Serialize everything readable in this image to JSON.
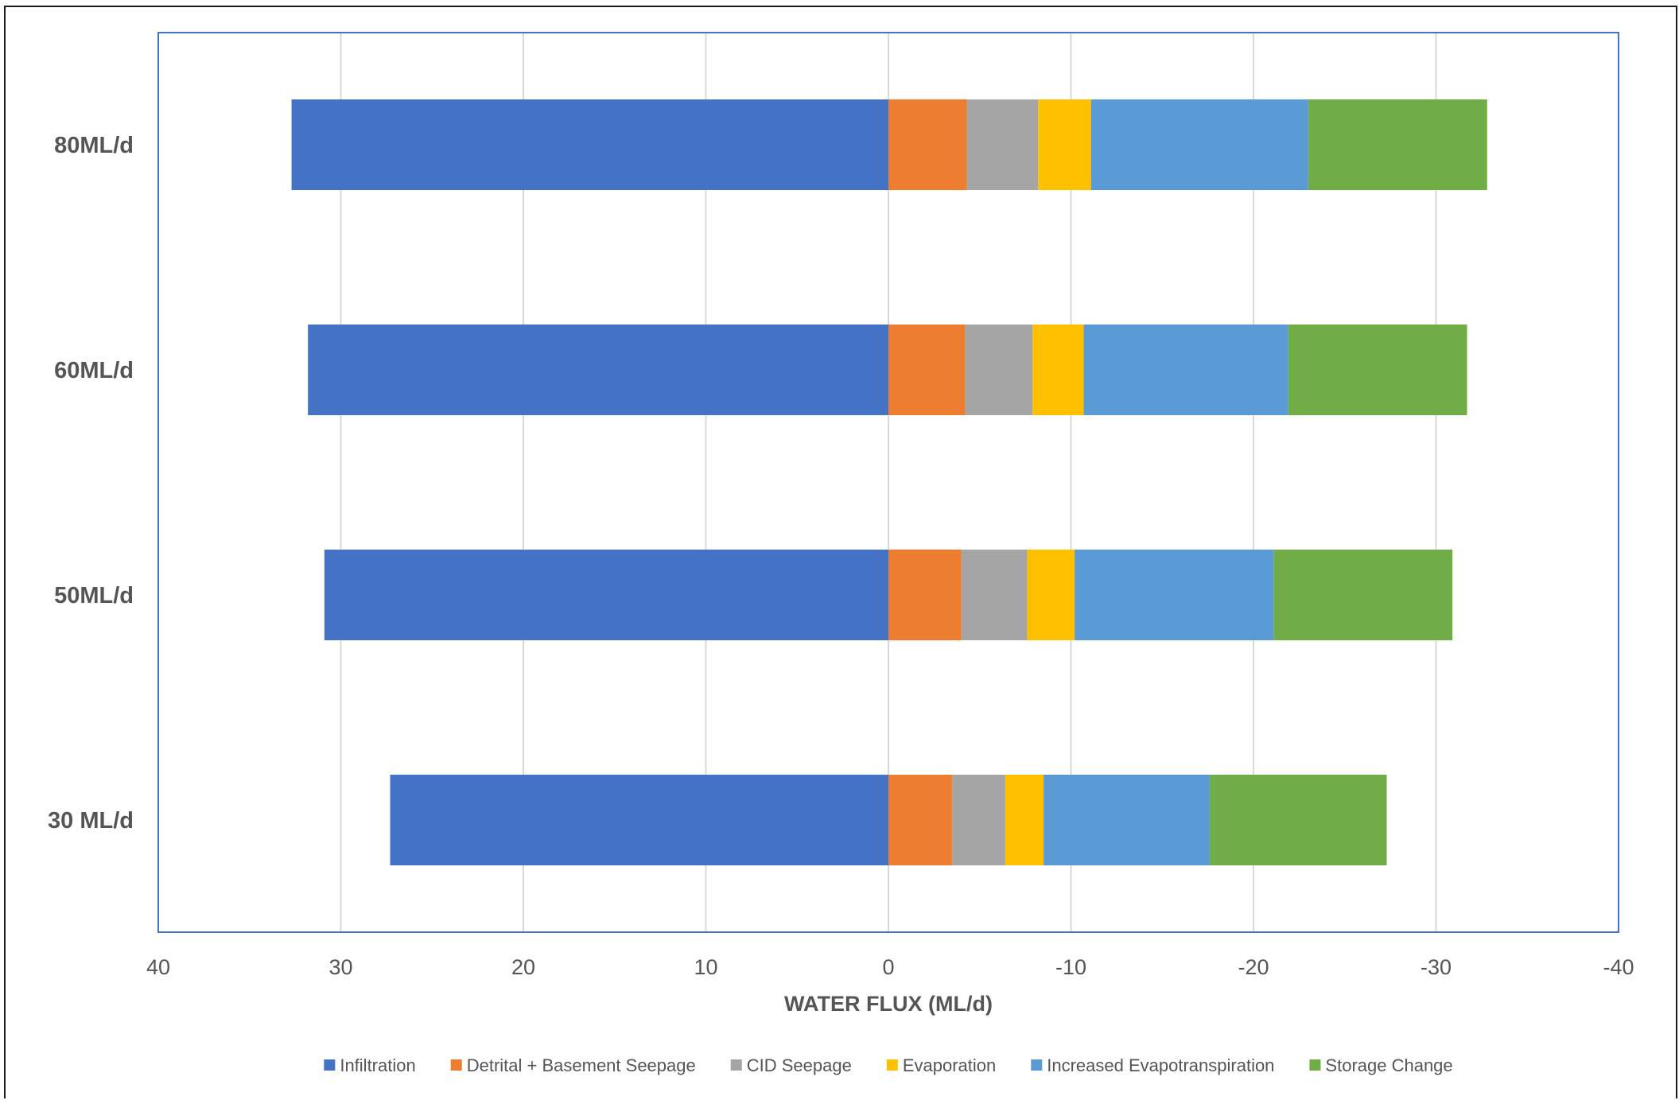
{
  "chart_data": {
    "type": "bar",
    "orientation": "horizontal",
    "stacked": true,
    "x_reversed": true,
    "categories": [
      "80ML/d",
      "60ML/d",
      "50ML/d",
      "30 ML/d"
    ],
    "series": [
      {
        "name": "Infiltration",
        "color": "#4472c4",
        "values": [
          32.7,
          31.8,
          30.9,
          27.3
        ]
      },
      {
        "name": "Detrital + Basement Seepage",
        "color": "#ed7d31",
        "values": [
          -4.3,
          -4.2,
          -4.0,
          -3.5
        ]
      },
      {
        "name": "CID Seepage",
        "color": "#a5a5a5",
        "values": [
          -3.9,
          -3.7,
          -3.6,
          -2.9
        ]
      },
      {
        "name": "Evaporation",
        "color": "#ffc000",
        "values": [
          -2.9,
          -2.8,
          -2.6,
          -2.1
        ]
      },
      {
        "name": "Increased Evapotranspiration",
        "color": "#5b9bd5",
        "values": [
          -11.9,
          -11.2,
          -10.9,
          -9.1
        ]
      },
      {
        "name": "Storage Change",
        "color": "#70ad47",
        "values": [
          -9.8,
          -9.8,
          -9.8,
          -9.7
        ]
      }
    ],
    "xlim": [
      40,
      -40
    ],
    "xticks": [
      40,
      30,
      20,
      10,
      0,
      -10,
      -20,
      -30,
      -40
    ],
    "xlabel": "WATER FLUX (ML/d)",
    "ylabel": "",
    "title": "",
    "grid": "vertical",
    "legend_position": "bottom",
    "plot_border_color": "#4472c4",
    "grid_color": "#d9d9d9"
  }
}
